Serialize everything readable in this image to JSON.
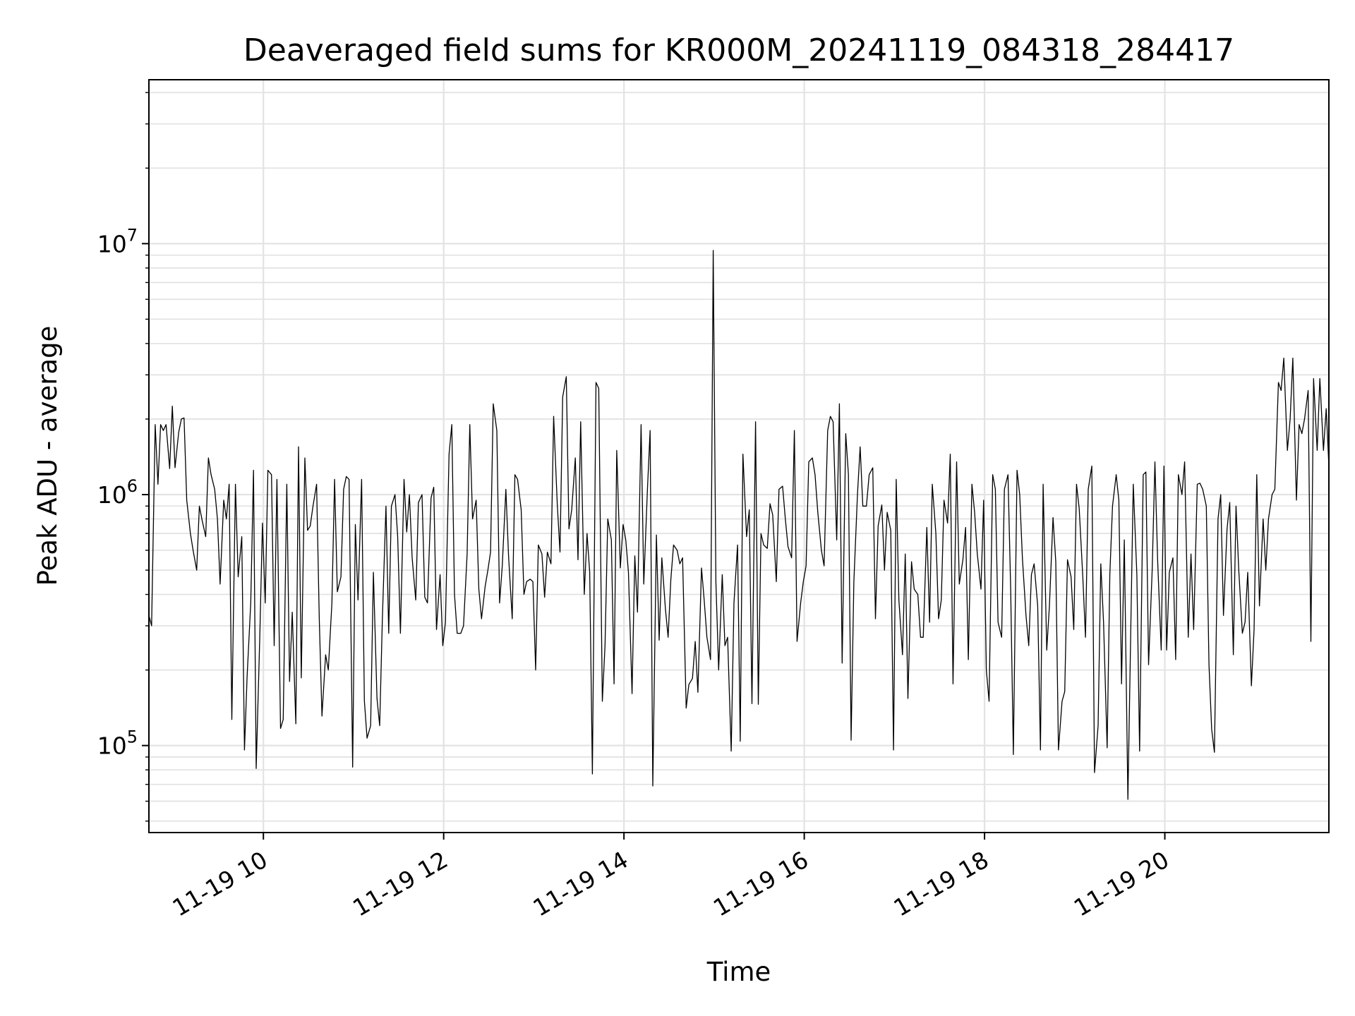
{
  "chart_data": {
    "type": "line",
    "title": "Deaveraged field sums for KR000M_20241119_084318_284417",
    "xlabel": "Time",
    "ylabel": "Peak ADU - average",
    "x_unit": "hour of 2024-11-19",
    "y_scale": "log",
    "x_range": [
      8.73,
      21.82
    ],
    "ylim": [
      45000,
      45000000
    ],
    "grid": true,
    "legend": "none",
    "line_color": "#000000",
    "x_ticks": [
      {
        "value": 10,
        "label": "11-19 10"
      },
      {
        "value": 12,
        "label": "11-19 12"
      },
      {
        "value": 14,
        "label": "11-19 14"
      },
      {
        "value": 16,
        "label": "11-19 16"
      },
      {
        "value": 18,
        "label": "11-19 18"
      },
      {
        "value": 20,
        "label": "11-19 20"
      }
    ],
    "y_ticks": [
      {
        "value": 100000,
        "base": "10",
        "exp": "5"
      },
      {
        "value": 1000000,
        "base": "10",
        "exp": "6"
      },
      {
        "value": 10000000,
        "base": "10",
        "exp": "7"
      }
    ],
    "series": [
      {
        "x": [
          8.73,
          8.76,
          8.8,
          8.83,
          8.86,
          8.89,
          8.92,
          8.96,
          8.99,
          9.02,
          9.06,
          9.09,
          9.12,
          9.15,
          9.19,
          9.22,
          9.26,
          9.29,
          9.32,
          9.36,
          9.39,
          9.42,
          9.46,
          9.49,
          9.52,
          9.56,
          9.59,
          9.62,
          9.65,
          9.69,
          9.72,
          9.76,
          9.79,
          9.82,
          9.86,
          9.89,
          9.92,
          9.96,
          9.99,
          10.02,
          10.05,
          10.09,
          10.12,
          10.15,
          10.19,
          10.22,
          10.26,
          10.29,
          10.32,
          10.36,
          10.39,
          10.42,
          10.46,
          10.49,
          10.52,
          10.55,
          10.59,
          10.62,
          10.65,
          10.69,
          10.72,
          10.76,
          10.79,
          10.82,
          10.86,
          10.89,
          10.92,
          10.95,
          10.99,
          11.02,
          11.05,
          11.09,
          11.12,
          11.15,
          11.19,
          11.22,
          11.26,
          11.29,
          11.32,
          11.36,
          11.39,
          11.42,
          11.46,
          11.49,
          11.52,
          11.56,
          11.59,
          11.62,
          11.65,
          11.69,
          11.72,
          11.76,
          11.79,
          11.82,
          11.86,
          11.89,
          11.92,
          11.96,
          11.99,
          12.02,
          12.06,
          12.09,
          12.12,
          12.15,
          12.19,
          12.22,
          12.26,
          12.29,
          12.32,
          12.36,
          12.39,
          12.42,
          12.46,
          12.49,
          12.52,
          12.55,
          12.59,
          12.62,
          12.65,
          12.69,
          12.72,
          12.76,
          12.79,
          12.82,
          12.86,
          12.89,
          12.92,
          12.96,
          12.99,
          13.02,
          13.05,
          13.09,
          13.12,
          13.15,
          13.19,
          13.22,
          13.26,
          13.29,
          13.32,
          13.36,
          13.39,
          13.42,
          13.46,
          13.49,
          13.52,
          13.56,
          13.59,
          13.62,
          13.65,
          13.69,
          13.72,
          13.76,
          13.79,
          13.82,
          13.86,
          13.89,
          13.92,
          13.96,
          13.99,
          14.02,
          14.05,
          14.09,
          14.12,
          14.15,
          14.19,
          14.22,
          14.26,
          14.29,
          14.32,
          14.36,
          14.39,
          14.42,
          14.46,
          14.49,
          14.52,
          14.55,
          14.59,
          14.62,
          14.65,
          14.69,
          14.72,
          14.76,
          14.79,
          14.82,
          14.86,
          14.89,
          14.92,
          14.96,
          14.99,
          15.02,
          15.05,
          15.09,
          15.12,
          15.15,
          15.19,
          15.22,
          15.26,
          15.29,
          15.32,
          15.36,
          15.39,
          15.42,
          15.46,
          15.49,
          15.52,
          15.55,
          15.59,
          15.62,
          15.65,
          15.69,
          15.72,
          15.76,
          15.79,
          15.82,
          15.86,
          15.89,
          15.92,
          15.96,
          15.99,
          16.02,
          16.05,
          16.09,
          16.12,
          16.15,
          16.19,
          16.22,
          16.26,
          16.29,
          16.32,
          16.36,
          16.39,
          16.42,
          16.46,
          16.49,
          16.52,
          16.55,
          16.59,
          16.62,
          16.65,
          16.69,
          16.72,
          16.76,
          16.79,
          16.82,
          16.86,
          16.89,
          16.92,
          16.96,
          16.99,
          17.02,
          17.05,
          17.09,
          17.12,
          17.15,
          17.19,
          17.22,
          17.26,
          17.29,
          17.32,
          17.36,
          17.39,
          17.42,
          17.46,
          17.49,
          17.52,
          17.55,
          17.59,
          17.62,
          17.65,
          17.69,
          17.72,
          17.76,
          17.79,
          17.82,
          17.86,
          17.89,
          17.92,
          17.96,
          17.99,
          18.02,
          18.05,
          18.09,
          18.12,
          18.15,
          18.19,
          18.22,
          18.26,
          18.29,
          18.32,
          18.36,
          18.39,
          18.42,
          18.46,
          18.49,
          18.52,
          18.55,
          18.59,
          18.62,
          18.65,
          18.69,
          18.72,
          18.76,
          18.79,
          18.82,
          18.86,
          18.89,
          18.92,
          18.96,
          18.99,
          19.02,
          19.05,
          19.09,
          19.12,
          19.15,
          19.19,
          19.22,
          19.26,
          19.29,
          19.32,
          19.36,
          19.39,
          19.42,
          19.46,
          19.49,
          19.52,
          19.55,
          19.59,
          19.62,
          19.65,
          19.69,
          19.72,
          19.76,
          19.79,
          19.82,
          19.86,
          19.89,
          19.92,
          19.96,
          19.99,
          20.02,
          20.05,
          20.09,
          20.12,
          20.15,
          20.19,
          20.22,
          20.26,
          20.29,
          20.32,
          20.36,
          20.39,
          20.42,
          20.46,
          20.49,
          20.52,
          20.55,
          20.59,
          20.62,
          20.65,
          20.69,
          20.72,
          20.76,
          20.79,
          20.82,
          20.86,
          20.89,
          20.92,
          20.96,
          20.99,
          21.02,
          21.05,
          21.09,
          21.12,
          21.15,
          21.19,
          21.22,
          21.26,
          21.29,
          21.32,
          21.36,
          21.39,
          21.42,
          21.46,
          21.49,
          21.52,
          21.55,
          21.59,
          21.62,
          21.65,
          21.69,
          21.72,
          21.76,
          21.79,
          21.82
        ],
        "values": [
          330000,
          300000,
          1900000,
          1100000,
          1900000,
          1800000,
          1900000,
          1270000,
          2250000,
          1280000,
          1770000,
          2000000,
          2020000,
          950000,
          700000,
          600000,
          500000,
          900000,
          790000,
          680000,
          1400000,
          1200000,
          1050000,
          800000,
          440000,
          950000,
          800000,
          1100000,
          127000,
          1100000,
          470000,
          680000,
          96000,
          190000,
          370000,
          1250000,
          81000,
          270000,
          770000,
          370000,
          1250000,
          1200000,
          250000,
          1150000,
          117000,
          127000,
          1100000,
          180000,
          340000,
          122000,
          1550000,
          186000,
          1400000,
          720000,
          750000,
          900000,
          1100000,
          320000,
          131000,
          230000,
          200000,
          370000,
          1150000,
          410000,
          470000,
          1050000,
          1180000,
          1150000,
          82000,
          760000,
          380000,
          1150000,
          151000,
          107000,
          120000,
          490000,
          154000,
          120000,
          320000,
          900000,
          280000,
          900000,
          1000000,
          680000,
          280000,
          1150000,
          710000,
          1000000,
          560000,
          380000,
          930000,
          1000000,
          390000,
          370000,
          970000,
          1070000,
          290000,
          480000,
          250000,
          310000,
          1450000,
          1900000,
          400000,
          280000,
          280000,
          300000,
          580000,
          1900000,
          800000,
          950000,
          420000,
          320000,
          430000,
          500000,
          590000,
          2300000,
          1800000,
          370000,
          520000,
          1050000,
          570000,
          320000,
          1200000,
          1150000,
          870000,
          400000,
          450000,
          460000,
          450000,
          200000,
          630000,
          580000,
          390000,
          590000,
          530000,
          2050000,
          920000,
          590000,
          2450000,
          2950000,
          730000,
          870000,
          1400000,
          550000,
          1950000,
          400000,
          700000,
          490000,
          77000,
          2800000,
          2650000,
          150000,
          250000,
          800000,
          660000,
          176000,
          1500000,
          510000,
          760000,
          660000,
          490000,
          161000,
          570000,
          340000,
          1900000,
          440000,
          1050000,
          1800000,
          69000,
          690000,
          263000,
          560000,
          350000,
          270000,
          460000,
          630000,
          600000,
          530000,
          560000,
          141000,
          175000,
          185000,
          260000,
          163000,
          510000,
          380000,
          270000,
          220000,
          9400000,
          450000,
          200000,
          480000,
          250000,
          270000,
          95000,
          370000,
          630000,
          104000,
          1450000,
          680000,
          870000,
          147000,
          1950000,
          146000,
          700000,
          630000,
          610000,
          920000,
          830000,
          450000,
          1050000,
          1080000,
          800000,
          620000,
          560000,
          1800000,
          260000,
          370000,
          450000,
          520000,
          1350000,
          1400000,
          1200000,
          850000,
          600000,
          520000,
          1800000,
          2050000,
          1950000,
          660000,
          2300000,
          213000,
          1750000,
          1200000,
          105000,
          450000,
          1000000,
          1550000,
          900000,
          900000,
          1200000,
          1280000,
          320000,
          750000,
          910000,
          500000,
          850000,
          720000,
          96000,
          1150000,
          380000,
          230000,
          580000,
          154000,
          540000,
          420000,
          400000,
          270000,
          270000,
          740000,
          310000,
          1100000,
          700000,
          320000,
          380000,
          950000,
          770000,
          1450000,
          176000,
          1350000,
          440000,
          550000,
          740000,
          220000,
          1100000,
          850000,
          580000,
          420000,
          950000,
          200000,
          150000,
          1200000,
          1050000,
          310000,
          270000,
          1050000,
          1200000,
          420000,
          92000,
          1250000,
          1000000,
          560000,
          330000,
          250000,
          480000,
          530000,
          360000,
          96000,
          1100000,
          240000,
          360000,
          810000,
          540000,
          96000,
          150000,
          164000,
          550000,
          470000,
          290000,
          1100000,
          880000,
          470000,
          270000,
          1050000,
          1300000,
          78000,
          120000,
          530000,
          310000,
          98000,
          480000,
          900000,
          1200000,
          950000,
          176000,
          660000,
          61000,
          260000,
          1100000,
          480000,
          95000,
          1200000,
          1230000,
          210000,
          500000,
          1350000,
          550000,
          240000,
          1300000,
          240000,
          490000,
          560000,
          220000,
          1200000,
          1000000,
          1350000,
          270000,
          580000,
          290000,
          1100000,
          1110000,
          1050000,
          900000,
          210000,
          116000,
          94000,
          800000,
          1000000,
          330000,
          730000,
          930000,
          230000,
          900000,
          500000,
          280000,
          310000,
          490000,
          173000,
          290000,
          1200000,
          360000,
          800000,
          500000,
          800000,
          1000000,
          1050000,
          2800000,
          2600000,
          3500000,
          1500000,
          2000000,
          3500000,
          950000,
          1900000,
          1750000,
          2000000,
          2600000,
          260000,
          2900000,
          1500000,
          2900000,
          1500000,
          2200000,
          1300000
        ]
      }
    ]
  }
}
